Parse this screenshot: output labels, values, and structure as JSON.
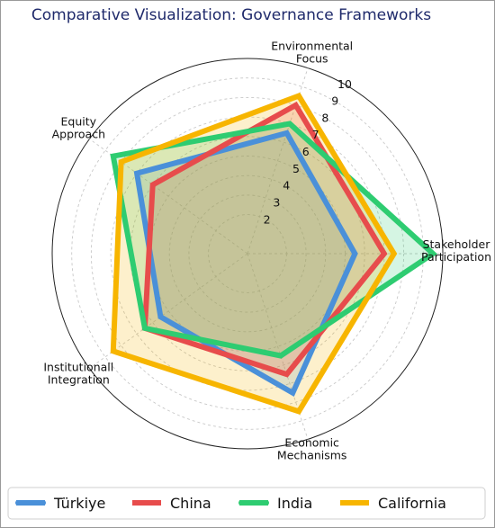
{
  "chart_data": {
    "type": "radar",
    "title": "Comparative Visualization: Governance Frameworks",
    "axes": [
      [
        "Stakeholder",
        "Participation"
      ],
      [
        "Environmental",
        "Focus"
      ],
      [
        "Equity",
        "Approach"
      ],
      [
        "Institutionall",
        "Integration"
      ],
      [
        "Economic",
        "Mechanisms"
      ]
    ],
    "rlim": [
      0,
      10
    ],
    "r_ticks": [
      2,
      3,
      4,
      5,
      6,
      7,
      8,
      9,
      10
    ],
    "grid": true,
    "legend_position": "bottom",
    "series": [
      {
        "name": "Türkiye",
        "color": "#4a90d9",
        "values": [
          5.5,
          6.5,
          7.0,
          5.5,
          7.5
        ]
      },
      {
        "name": "China",
        "color": "#e74c4c",
        "values": [
          7.0,
          8.0,
          6.0,
          6.5,
          6.5
        ]
      },
      {
        "name": "India",
        "color": "#2ecc71",
        "values": [
          9.5,
          7.0,
          8.5,
          6.5,
          5.5
        ]
      },
      {
        "name": "California",
        "color": "#f7b500",
        "values": [
          7.5,
          8.5,
          8.0,
          8.5,
          8.5
        ]
      }
    ]
  }
}
